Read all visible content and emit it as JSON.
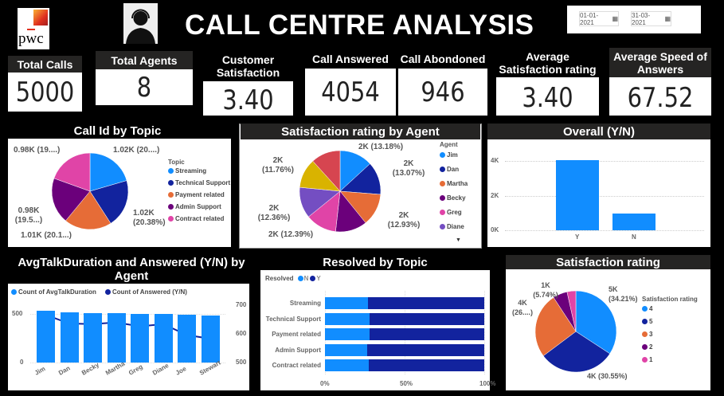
{
  "header": {
    "title": "CALL CENTRE ANALYSIS",
    "logo_text": "pwc",
    "date_start": "01-01-2021",
    "date_end": "31-03-2021",
    "calendar_icon": "calendar-icon",
    "agent_icon": "headset-agent-icon"
  },
  "kpis": [
    {
      "label": "Total Calls",
      "value": "5000"
    },
    {
      "label": "Total Agents",
      "value": "8"
    },
    {
      "label": "Customer Satisfaction",
      "value": "3.40"
    },
    {
      "label": "Call Answered",
      "value": "4054"
    },
    {
      "label": "Call Abondoned",
      "value": "946"
    },
    {
      "label": "Average Satisfaction rating",
      "value": "3.40"
    },
    {
      "label": "Average Speed of Answers",
      "value": "67.52"
    }
  ],
  "colors": {
    "c1": "#118DFF",
    "c2": "#12239E",
    "c3": "#E66C37",
    "c4": "#6B007B",
    "c5": "#E044A7",
    "c6": "#744EC2",
    "c7": "#D9B300",
    "c8": "#D64550"
  },
  "chart_data": [
    {
      "type": "pie",
      "title": "Call Id by Topic",
      "legend_title": "Topic",
      "legend_position": "right",
      "categories": [
        "Streaming",
        "Technical Support",
        "Payment related",
        "Admin Support",
        "Contract related"
      ],
      "values": [
        20.5,
        20.38,
        20.1,
        19.5,
        19.52
      ],
      "data_labels": [
        "1.02K (20....)",
        "1.02K (20.38%)",
        "1.01K (20.1...)",
        "0.98K (19.5...)",
        "0.98K (19....)"
      ]
    },
    {
      "type": "pie",
      "title": "Satisfaction rating by Agent",
      "legend_title": "Agent",
      "legend_position": "right",
      "categories": [
        "Jim",
        "Dan",
        "Martha",
        "Becky",
        "Greg",
        "Diane",
        "Joe",
        "Stewart"
      ],
      "legend_visible": [
        "Jim",
        "Dan",
        "Martha",
        "Becky",
        "Greg",
        "Diane"
      ],
      "values": [
        13.18,
        13.07,
        12.93,
        12.6,
        12.39,
        12.36,
        11.76,
        11.71
      ],
      "data_labels": [
        "2K (13.18%)",
        "2K (13.07%)",
        "2K (12.93%)",
        "",
        "2K (12.39%)",
        "2K (12.36%)",
        "2K (11.76%)",
        ""
      ]
    },
    {
      "type": "bar",
      "title": "Overall (Y/N)",
      "categories": [
        "Y",
        "N"
      ],
      "values": [
        4054,
        946
      ],
      "ylim": [
        0,
        4500
      ],
      "yticks": [
        "0K",
        "2K",
        "4K"
      ],
      "grid": true
    },
    {
      "type": "bar",
      "title": "AvgTalkDuration and Answered (Y/N) by Agent",
      "legend_position": "top-left",
      "categories": [
        "Jim",
        "Dan",
        "Becky",
        "Martha",
        "Greg",
        "Diane",
        "Joe",
        "Stewart"
      ],
      "series": [
        {
          "name": "Count of AvgTalkDuration",
          "type": "bar",
          "axis": "left",
          "values": [
            530,
            515,
            510,
            505,
            500,
            500,
            490,
            485
          ]
        },
        {
          "name": "Count of Answered (Y/N)",
          "type": "line",
          "axis": "right",
          "values": [
            666,
            636,
            634,
            640,
            626,
            634,
            596,
            583
          ]
        }
      ],
      "ylim": [
        0,
        560
      ],
      "yticks": [
        "0",
        "500"
      ],
      "y2lim": [
        500,
        700
      ],
      "y2ticks": [
        "500",
        "600",
        "700"
      ]
    },
    {
      "type": "bar",
      "title": "Resolved by Topic",
      "orientation": "horizontal",
      "stacked": "100%",
      "legend_title": "Resolved",
      "legend_position": "top-left",
      "categories": [
        "Streaming",
        "Technical Support",
        "Payment related",
        "Admin Support",
        "Contract related"
      ],
      "series": [
        {
          "name": "N",
          "values": [
            27,
            28,
            28,
            26.5,
            27.5
          ]
        },
        {
          "name": "Y",
          "values": [
            73,
            72,
            72,
            73.5,
            72.5
          ]
        }
      ],
      "xticks": [
        "0%",
        "50%",
        "100%"
      ]
    },
    {
      "type": "pie",
      "title": "Satisfaction rating",
      "legend_title": "Satisfaction rating",
      "legend_position": "right",
      "categories": [
        "4",
        "5",
        "3",
        "2",
        "1"
      ],
      "values": [
        34.21,
        30.55,
        26.0,
        5.74,
        3.5
      ],
      "data_labels": [
        "5K (34.21%)",
        "4K (30.55%)",
        "4K (26....)",
        "1K (5.74%)",
        ""
      ]
    }
  ]
}
